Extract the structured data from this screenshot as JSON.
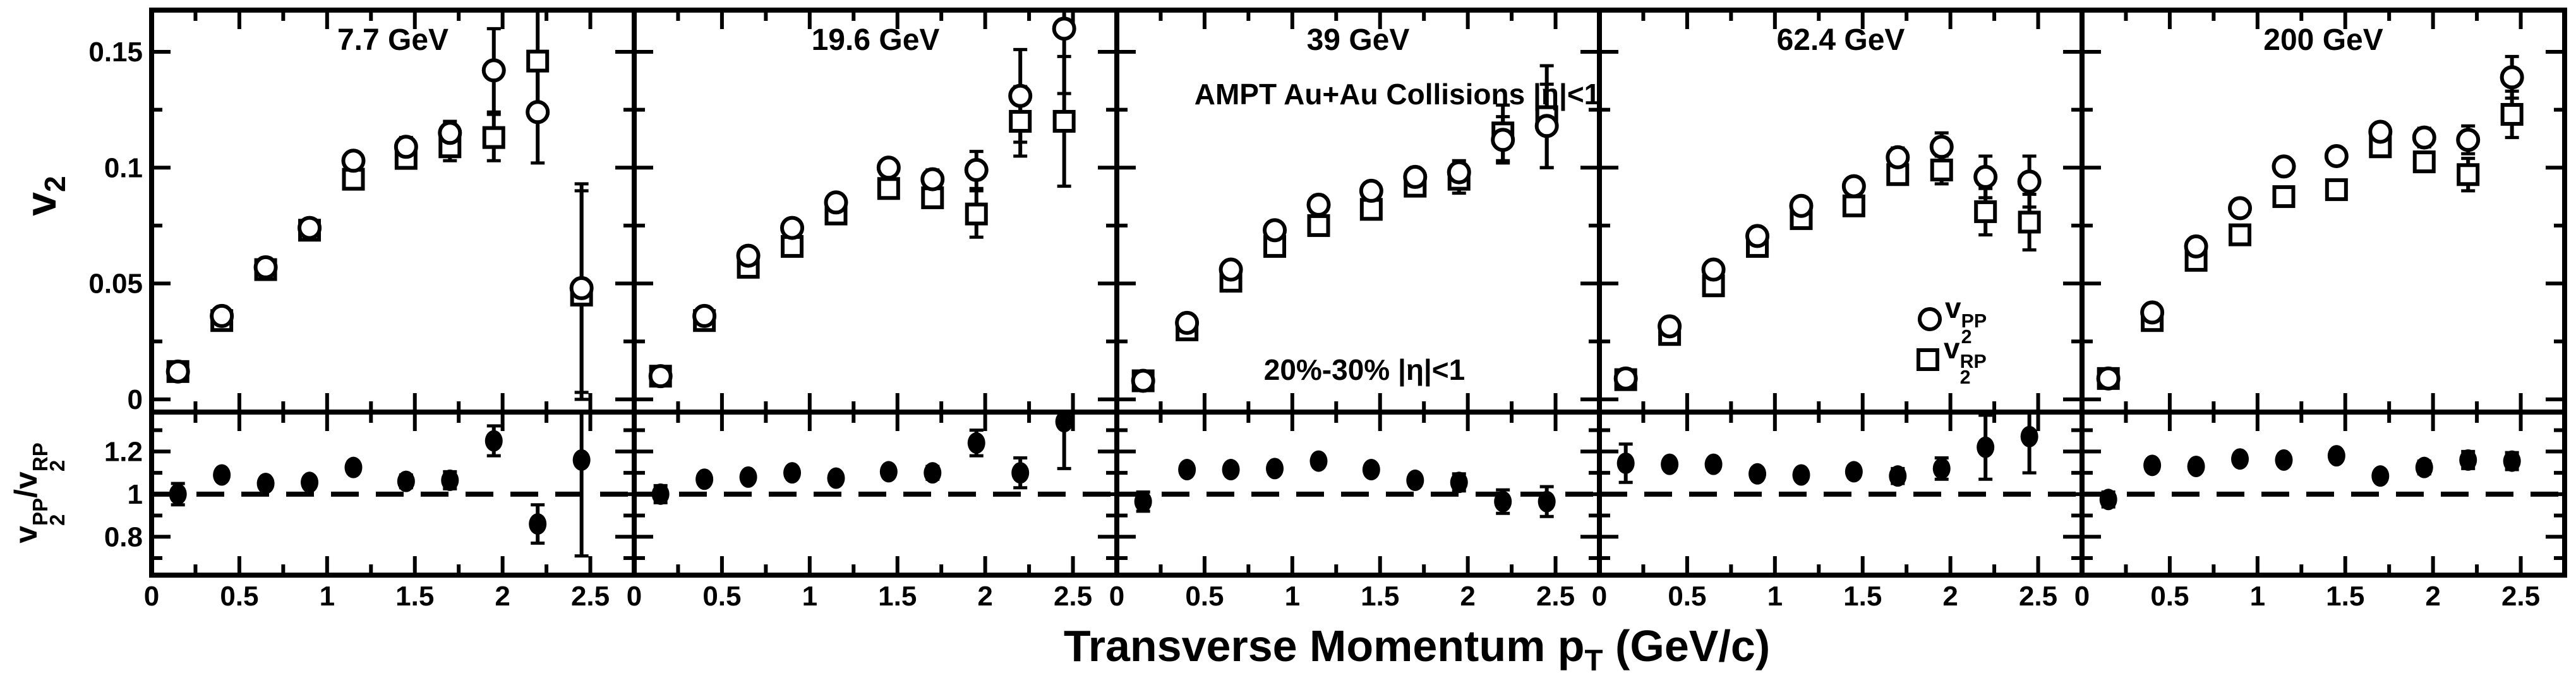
{
  "figure_bg": "#ffffff",
  "ink_color": "#000000",
  "chart_data": {
    "type": "scatter",
    "xlabel": {
      "pre": "Transverse Momentum p",
      "sub": "T",
      "post": " (GeV/c)"
    },
    "ylabel_top": {
      "base": "v",
      "sub": "2"
    },
    "ylabel_bottom": {
      "num_base": "v",
      "num_sub": "2",
      "num_sup": "PP",
      "divider": "/",
      "den_base": "v",
      "den_sub": "2",
      "den_sup": "RP"
    },
    "annotations": [
      "AMPT Au+Au Collisions |η|<1",
      "20%-30% |η|<1"
    ],
    "legend": [
      {
        "symbol": "open-circle",
        "base": "v",
        "sub": "2",
        "sup": "PP"
      },
      {
        "symbol": "open-square",
        "base": "v",
        "sub": "2",
        "sup": "RP"
      }
    ],
    "axes": {
      "x_range": [
        0,
        2.75
      ],
      "x_ticks": [
        {
          "v": 0,
          "label": "0"
        },
        {
          "v": 0.5,
          "label": "0.5"
        },
        {
          "v": 1,
          "label": "1"
        },
        {
          "v": 1.5,
          "label": "1.5"
        },
        {
          "v": 2,
          "label": "2"
        },
        {
          "v": 2.5,
          "label": "2.5"
        }
      ],
      "x_minor": [
        0.25,
        0.75,
        1.25,
        1.75,
        2.25
      ],
      "top_y_range": [
        -0.0055,
        0.168
      ],
      "top_y_ticks": [
        {
          "v": 0,
          "label": "0"
        },
        {
          "v": 0.05,
          "label": "0.05"
        },
        {
          "v": 0.1,
          "label": "0.1"
        },
        {
          "v": 0.15,
          "label": "0.15"
        }
      ],
      "top_y_minor": [
        0.025,
        0.075,
        0.125
      ],
      "bottom_y_range": [
        0.62,
        1.385
      ],
      "bottom_y_ticks": [
        {
          "v": 0.8,
          "label": "0.8"
        },
        {
          "v": 1,
          "label": "1"
        },
        {
          "v": 1.2,
          "label": "1.2"
        }
      ],
      "bottom_y_minor": [
        0.7,
        0.9,
        1.1,
        1.3
      ],
      "ref_line_y": 1
    },
    "x": [
      0.15,
      0.4,
      0.65,
      0.9,
      1.15,
      1.45,
      1.7,
      1.95,
      2.2,
      2.45
    ],
    "panels": [
      {
        "title": "7.7 GeV",
        "pp": [
          0.012,
          0.036,
          0.057,
          0.074,
          0.103,
          0.109,
          0.115,
          0.142,
          0.124,
          0.048
        ],
        "pp_err": [
          0.001,
          0.001,
          0.002,
          0.002,
          0.003,
          0.004,
          0.005,
          0.018,
          0.022,
          0.045
        ],
        "rp": [
          0.012,
          0.034,
          0.056,
          0.073,
          0.095,
          0.104,
          0.109,
          0.113,
          0.146,
          0.045
        ],
        "rp_err": [
          0.001,
          0.001,
          0.002,
          0.002,
          0.003,
          0.004,
          0.006,
          0.01,
          0.024,
          0.045
        ],
        "ratio": [
          1.0,
          1.09,
          1.05,
          1.055,
          1.125,
          1.06,
          1.065,
          1.25,
          0.86,
          1.16
        ],
        "ratio_err": [
          0.05,
          0.02,
          0.02,
          0.02,
          0.025,
          0.03,
          0.04,
          0.07,
          0.09,
          0.45
        ]
      },
      {
        "title": "19.6 GeV",
        "pp": [
          0.01,
          0.036,
          0.062,
          0.074,
          0.085,
          0.1,
          0.095,
          0.099,
          0.131,
          0.16
        ],
        "pp_err": [
          0.001,
          0.001,
          0.002,
          0.002,
          0.003,
          0.003,
          0.004,
          0.008,
          0.02,
          0.028
        ],
        "rp": [
          0.01,
          0.034,
          0.057,
          0.066,
          0.08,
          0.091,
          0.087,
          0.08,
          0.12,
          0.12
        ],
        "rp_err": [
          0.001,
          0.001,
          0.002,
          0.002,
          0.003,
          0.003,
          0.004,
          0.01,
          0.015,
          0.028
        ],
        "ratio": [
          1.0,
          1.07,
          1.08,
          1.1,
          1.075,
          1.105,
          1.1,
          1.24,
          1.1,
          1.34
        ],
        "ratio_err": [
          0.04,
          0.015,
          0.015,
          0.015,
          0.02,
          0.02,
          0.03,
          0.06,
          0.07,
          0.22
        ]
      },
      {
        "title": "39 GeV",
        "pp": [
          0.008,
          0.033,
          0.056,
          0.073,
          0.084,
          0.09,
          0.096,
          0.098,
          0.112,
          0.118
        ],
        "pp_err": [
          0.001,
          0.001,
          0.001,
          0.002,
          0.002,
          0.003,
          0.003,
          0.005,
          0.01,
          0.018
        ],
        "rp": [
          0.008,
          0.03,
          0.051,
          0.066,
          0.075,
          0.082,
          0.092,
          0.095,
          0.115,
          0.122
        ],
        "rp_err": [
          0.001,
          0.001,
          0.001,
          0.002,
          0.002,
          0.003,
          0.003,
          0.006,
          0.012,
          0.022
        ],
        "ratio": [
          0.965,
          1.115,
          1.115,
          1.12,
          1.155,
          1.115,
          1.065,
          1.055,
          0.965,
          0.965
        ],
        "ratio_err": [
          0.045,
          0.012,
          0.012,
          0.015,
          0.015,
          0.02,
          0.025,
          0.04,
          0.055,
          0.07
        ]
      },
      {
        "title": "62.4 GeV",
        "pp": [
          0.009,
          0.0315,
          0.056,
          0.0705,
          0.0835,
          0.092,
          0.1045,
          0.109,
          0.096,
          0.094
        ],
        "pp_err": [
          0.001,
          0.001,
          0.001,
          0.002,
          0.002,
          0.003,
          0.004,
          0.006,
          0.009,
          0.011
        ],
        "rp": [
          0.0085,
          0.028,
          0.049,
          0.066,
          0.078,
          0.0835,
          0.097,
          0.099,
          0.081,
          0.0765
        ],
        "rp_err": [
          0.001,
          0.001,
          0.001,
          0.002,
          0.002,
          0.003,
          0.004,
          0.006,
          0.01,
          0.012
        ],
        "ratio": [
          1.145,
          1.14,
          1.14,
          1.095,
          1.09,
          1.105,
          1.085,
          1.12,
          1.22,
          1.27
        ],
        "ratio_err": [
          0.09,
          0.02,
          0.02,
          0.02,
          0.02,
          0.025,
          0.035,
          0.05,
          0.15,
          0.17
        ]
      },
      {
        "title": "200 GeV",
        "pp": [
          0.009,
          0.0375,
          0.066,
          0.0825,
          0.1005,
          0.105,
          0.1155,
          0.113,
          0.112,
          0.139
        ],
        "pp_err": [
          0.001,
          0.001,
          0.001,
          0.0015,
          0.002,
          0.002,
          0.003,
          0.004,
          0.006,
          0.009
        ],
        "rp": [
          0.009,
          0.034,
          0.06,
          0.071,
          0.0875,
          0.0905,
          0.109,
          0.1025,
          0.097,
          0.123
        ],
        "rp_err": [
          0.001,
          0.001,
          0.001,
          0.0015,
          0.002,
          0.002,
          0.003,
          0.004,
          0.007,
          0.01
        ],
        "ratio": [
          0.975,
          1.135,
          1.13,
          1.165,
          1.16,
          1.18,
          1.085,
          1.125,
          1.16,
          1.155
        ],
        "ratio_err": [
          0.035,
          0.01,
          0.01,
          0.012,
          0.012,
          0.015,
          0.02,
          0.03,
          0.04,
          0.04
        ]
      }
    ]
  }
}
